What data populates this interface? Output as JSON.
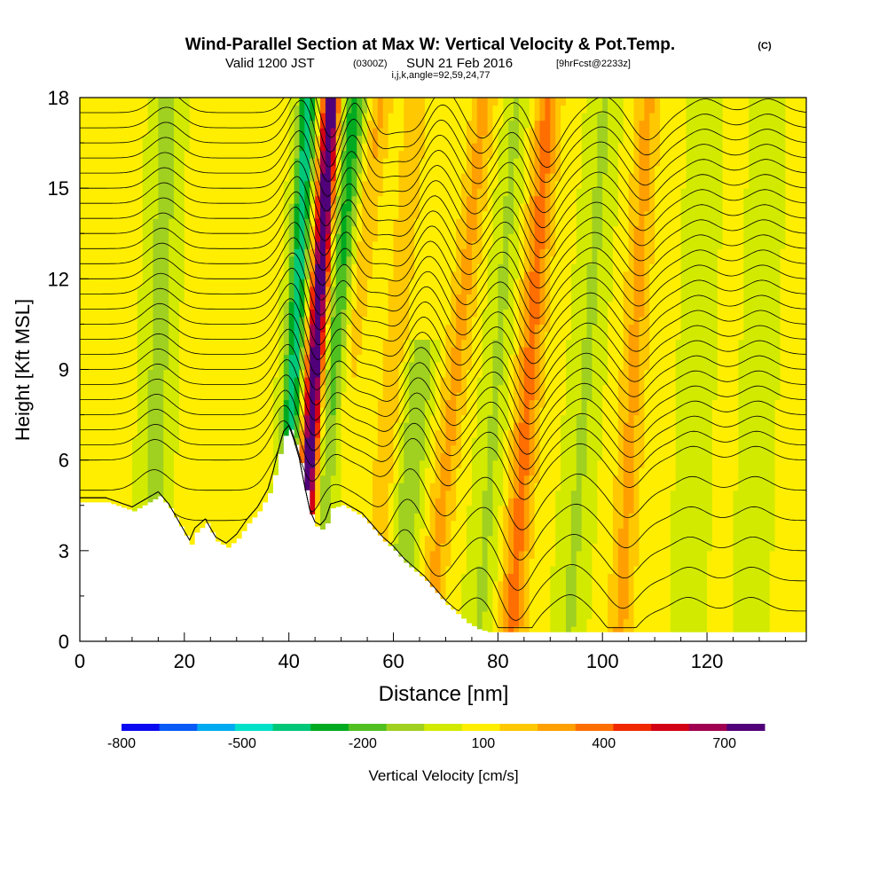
{
  "chart_data": {
    "type": "heatmap",
    "title": "Wind-Parallel Section at Max W: Vertical Velocity & Pot.Temp.",
    "title_mark": "(C)",
    "subtitle": {
      "part1": "Valid 1200 JST",
      "part2": "(0300Z)",
      "part3": "SUN 21 Feb 2016",
      "part4": "[9hrFcst@2233z]"
    },
    "subtitle2": "i,j,k,angle=92,59,24,77",
    "xlabel": "Distance [nm]",
    "ylabel": "Height [Kft MSL]",
    "xlim": [
      0,
      139
    ],
    "ylim": [
      0,
      18
    ],
    "x_ticks": [
      "0",
      "20",
      "40",
      "60",
      "80",
      "100",
      "120"
    ],
    "x_tick_values": [
      0,
      20,
      40,
      60,
      80,
      100,
      120
    ],
    "y_ticks": [
      "0",
      "3",
      "6",
      "9",
      "12",
      "15",
      "18"
    ],
    "y_tick_values": [
      0,
      3,
      6,
      9,
      12,
      15,
      18
    ],
    "grid": false,
    "colorbar": {
      "label": "Vertical Velocity [cm/s]",
      "tick_labels": [
        "-800",
        "-500",
        "-200",
        "100",
        "400",
        "700"
      ],
      "tick_values": [
        -800,
        -500,
        -200,
        100,
        400,
        700
      ],
      "range": [
        -800,
        800
      ],
      "colors": [
        "#0a0af0",
        "#0a5af5",
        "#00aaf0",
        "#00e0c8",
        "#00c878",
        "#00aa20",
        "#50c020",
        "#a0d020",
        "#d2ea00",
        "#ffee00",
        "#ffc800",
        "#ffa000",
        "#ff6e00",
        "#f02800",
        "#d20014",
        "#a00050",
        "#500078"
      ]
    },
    "terrain_profile": {
      "x": [
        0,
        5,
        10,
        13,
        15,
        17,
        19,
        21,
        22,
        24,
        26,
        28,
        30,
        32,
        34,
        36,
        37,
        38,
        39,
        40,
        41,
        42,
        43,
        44,
        45,
        46,
        47,
        48,
        50,
        52,
        54,
        56,
        58,
        60,
        62,
        64,
        66,
        68,
        70,
        72,
        74,
        76,
        78,
        80,
        139
      ],
      "height": [
        4.6,
        4.6,
        4.3,
        4.6,
        4.8,
        4.4,
        3.8,
        3.2,
        3.6,
        3.9,
        3.3,
        3.1,
        3.4,
        3.9,
        4.3,
        4.9,
        5.5,
        6.2,
        6.8,
        7.0,
        6.5,
        5.9,
        5.0,
        4.2,
        3.8,
        3.7,
        3.9,
        4.4,
        4.5,
        4.3,
        4.1,
        3.7,
        3.3,
        3.0,
        2.6,
        2.3,
        2.0,
        1.6,
        1.2,
        0.9,
        0.6,
        0.4,
        0.3,
        0.3,
        0.3
      ]
    },
    "updraft_bands": [
      {
        "center_km": 45,
        "top_kft": 18,
        "peak_cms": 800,
        "slope": 0.35
      },
      {
        "center_km": 51,
        "top_kft": 18,
        "peak_cms": 200,
        "slope": 0.7
      },
      {
        "center_km": 60,
        "top_kft": 18,
        "peak_cms": 150,
        "slope": 0.5
      },
      {
        "center_km": 72,
        "top_kft": 18,
        "peak_cms": 200,
        "slope": 0.6
      },
      {
        "center_km": 86,
        "top_kft": 18,
        "peak_cms": 300,
        "slope": 0.4
      },
      {
        "center_km": 106,
        "top_kft": 18,
        "peak_cms": 200,
        "slope": 0.3
      }
    ],
    "downdraft_bands": [
      {
        "center_km": 41,
        "top_kft": 18,
        "peak_cms": -450,
        "slope": 0.3
      },
      {
        "center_km": 49,
        "top_kft": 18,
        "peak_cms": -350,
        "slope": 0.4
      },
      {
        "center_km": 15,
        "top_kft": 18,
        "peak_cms": -150,
        "slope": 0.2
      },
      {
        "center_km": 65,
        "top_kft": 10,
        "peak_cms": -200,
        "slope": 0.5
      },
      {
        "center_km": 80,
        "top_kft": 18,
        "peak_cms": -120,
        "slope": 0.4
      },
      {
        "center_km": 97,
        "top_kft": 18,
        "peak_cms": -120,
        "slope": 0.4
      },
      {
        "center_km": 118,
        "top_kft": 18,
        "peak_cms": -100,
        "slope": 0.2
      },
      {
        "center_km": 130,
        "top_kft": 18,
        "peak_cms": -100,
        "slope": 0.2
      }
    ],
    "isentrope_base_heights_kft": [
      1.0,
      2.0,
      3.0,
      4.0,
      5.0,
      6.0,
      6.5,
      7.0,
      7.5,
      8.0,
      8.5,
      9.0,
      9.5,
      10.0,
      10.5,
      11.0,
      11.5,
      12.0,
      12.5,
      13.0,
      13.5,
      14.0,
      14.5,
      15.0,
      15.5,
      16.0,
      16.5,
      17.0,
      17.5
    ]
  }
}
